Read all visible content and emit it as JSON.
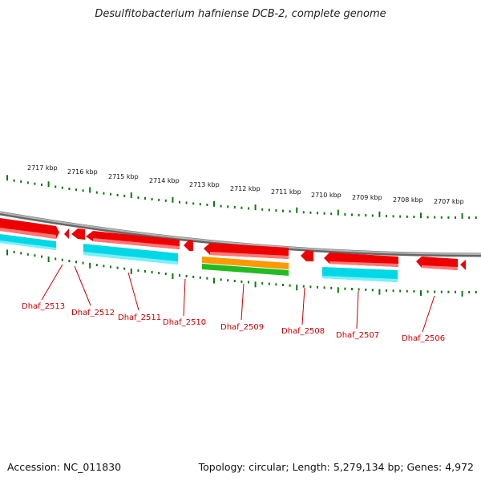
{
  "title": "Desulfitobacterium hafniense DCB-2, complete genome",
  "footer": {
    "accession": "Accession: NC_011830",
    "summary": "Topology: circular; Length: 5,279,134 bp; Genes: 4,972"
  },
  "colors": {
    "backbone": "#8a8a8a",
    "gene_forward": "#ee0000",
    "gene_highlight": "#ff7777",
    "cds": "#00d8e8",
    "rna_orange": "#ff9900",
    "rna_green": "#22bb22",
    "tick": "#117711",
    "gene_label": "#cc0000"
  },
  "scale_labels": [
    "2717 kbp",
    "2716 kbp",
    "2715 kbp",
    "2714 kbp",
    "2713 kbp",
    "2712 kbp",
    "2711 kbp",
    "2710 kbp",
    "2709 kbp",
    "2708 kbp",
    "2707 kbp"
  ],
  "gene_labels": [
    "Dhaf_2513",
    "Dhaf_2512",
    "Dhaf_2511",
    "Dhaf_2510",
    "Dhaf_2509",
    "Dhaf_2508",
    "Dhaf_2507",
    "Dhaf_2506"
  ]
}
